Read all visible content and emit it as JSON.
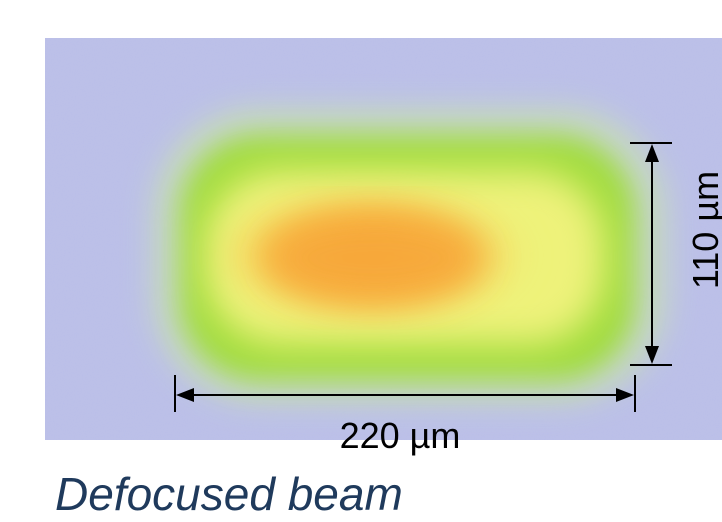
{
  "figure": {
    "width_label": "220 µm",
    "height_label": "110 µm",
    "caption": "Defocused beam"
  }
}
